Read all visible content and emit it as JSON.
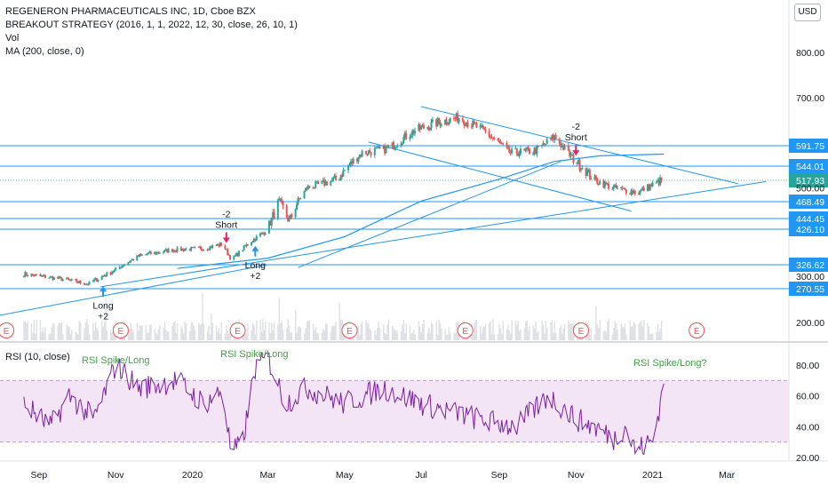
{
  "legend": {
    "title": "REGENERON PHARMACEUTICALS INC, 1D, Cboe BZX",
    "strategy": "BREAKOUT STRATEGY (2016, 1, 1, 2022, 12, 30, close, 26, 10, 1)",
    "vol": "Vol",
    "ma": "MA (200, close, 0)"
  },
  "currency_button": "USD",
  "rsi_legend": "RSI (10, close)",
  "colors": {
    "line": "#2196f3",
    "bull": "#26a69a",
    "bear": "#ef5350",
    "rsi": "#7b1fa2",
    "rsi_band": "#f3e5f5",
    "annotation_green": "#43a047",
    "earnings": "#ef5350"
  },
  "chart_data": [
    {
      "type": "candlestick",
      "title": "REGENERON PHARMACEUTICALS INC, 1D, Cboe BZX",
      "x_ticks": [
        "Sep",
        "Nov",
        "2020",
        "Mar",
        "May",
        "Jul",
        "Sep",
        "Nov",
        "2021",
        "Mar"
      ],
      "y_ticks": [
        200,
        300,
        500,
        700,
        800
      ],
      "price_path": [
        [
          "2019-08-20",
          305
        ],
        [
          "2019-09-15",
          295
        ],
        [
          "2019-10-10",
          282
        ],
        [
          "2019-11-01",
          315
        ],
        [
          "2019-11-20",
          352
        ],
        [
          "2019-12-15",
          368
        ],
        [
          "2020-01-10",
          372
        ],
        [
          "2020-01-25",
          385
        ],
        [
          "2020-02-01",
          340
        ],
        [
          "2020-02-15",
          388
        ],
        [
          "2020-02-28",
          420
        ],
        [
          "2020-03-10",
          470
        ],
        [
          "2020-03-18",
          440
        ],
        [
          "2020-04-01",
          500
        ],
        [
          "2020-04-25",
          520
        ],
        [
          "2020-05-15",
          575
        ],
        [
          "2020-06-05",
          585
        ],
        [
          "2020-06-25",
          625
        ],
        [
          "2020-07-15",
          645
        ],
        [
          "2020-07-31",
          655
        ],
        [
          "2020-08-20",
          625
        ],
        [
          "2020-09-10",
          575
        ],
        [
          "2020-09-30",
          580
        ],
        [
          "2020-10-15",
          612
        ],
        [
          "2020-10-30",
          560
        ],
        [
          "2020-11-15",
          520
        ],
        [
          "2020-12-01",
          500
        ],
        [
          "2020-12-20",
          490
        ],
        [
          "2021-01-10",
          520
        ]
      ],
      "price_levels": [
        591.75,
        544.01,
        468.49,
        444.45,
        426.1,
        326.62,
        270.55
      ],
      "last_price": 517.93,
      "trades": [
        {
          "label": "Long",
          "qty": "+2",
          "direction": "long"
        },
        {
          "label": "Short",
          "qty": "-2",
          "direction": "short"
        },
        {
          "label": "Long",
          "qty": "+2",
          "direction": "long"
        },
        {
          "label": "Short",
          "qty": "-2",
          "direction": "short"
        }
      ],
      "earnings_marker": "E",
      "indicators": [
        "Vol",
        "MA (200, close, 0)"
      ]
    },
    {
      "type": "line",
      "title": "RSI (10, close)",
      "y_ticks": [
        20,
        40,
        60,
        80
      ],
      "upper_band": 70,
      "lower_band": 30,
      "annotations": [
        "RSI Spike/Long",
        "RSI Spike/Long",
        "RSI Spike/Long?"
      ],
      "values": [
        [
          "2019-08-20",
          55
        ],
        [
          "2019-09-10",
          40
        ],
        [
          "2019-09-25",
          60
        ],
        [
          "2019-10-15",
          45
        ],
        [
          "2019-11-01",
          80
        ],
        [
          "2019-11-20",
          65
        ],
        [
          "2019-12-20",
          70
        ],
        [
          "2020-01-10",
          55
        ],
        [
          "2020-01-25",
          63
        ],
        [
          "2020-02-01",
          22
        ],
        [
          "2020-02-10",
          30
        ],
        [
          "2020-02-20",
          78
        ],
        [
          "2020-03-01",
          85
        ],
        [
          "2020-03-15",
          55
        ],
        [
          "2020-04-01",
          65
        ],
        [
          "2020-05-01",
          55
        ],
        [
          "2020-06-01",
          65
        ],
        [
          "2020-07-01",
          55
        ],
        [
          "2020-08-15",
          45
        ],
        [
          "2020-09-15",
          40
        ],
        [
          "2020-10-10",
          60
        ],
        [
          "2020-11-01",
          45
        ],
        [
          "2020-11-20",
          38
        ],
        [
          "2020-12-01",
          32
        ],
        [
          "2020-12-10",
          40
        ],
        [
          "2020-12-18",
          25
        ],
        [
          "2021-01-01",
          30
        ],
        [
          "2021-01-10",
          68
        ]
      ]
    }
  ]
}
